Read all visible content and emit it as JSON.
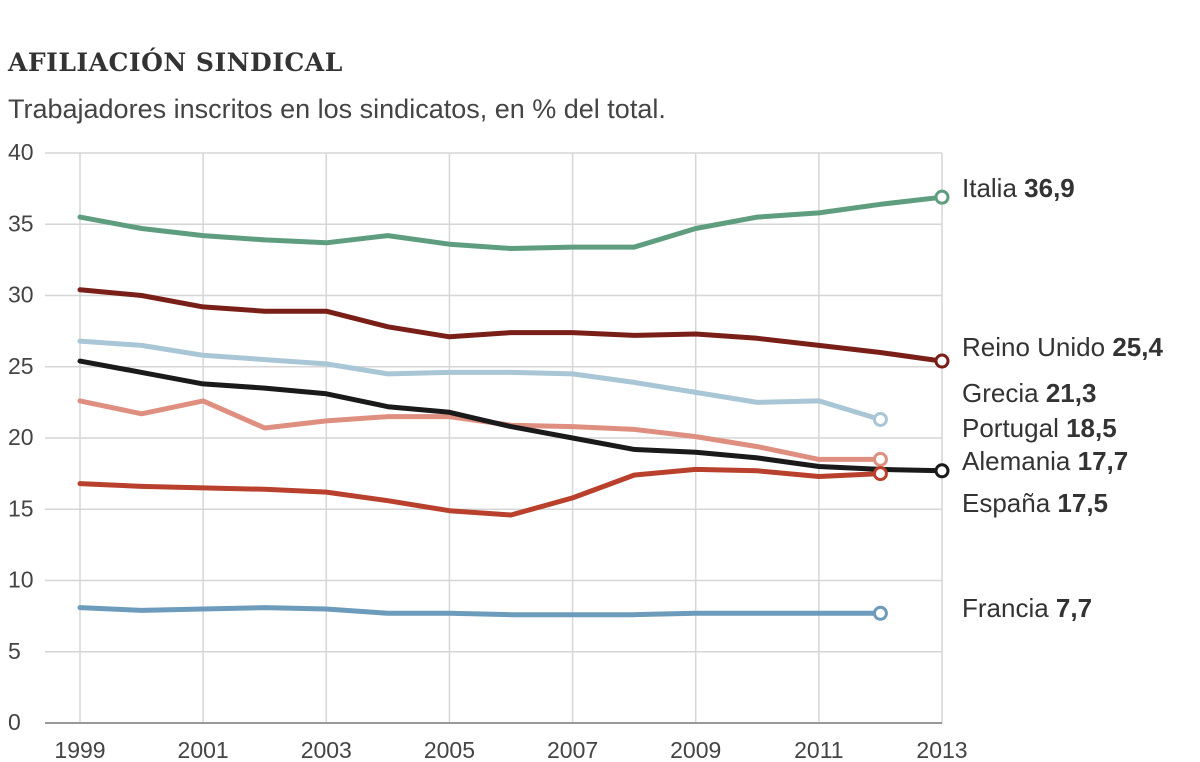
{
  "chart_data": {
    "type": "line",
    "title": "AFILIACIÓN SINDICAL",
    "subtitle": "Trabajadores inscritos en los sindicatos, en % del total.",
    "x": [
      1999,
      2000,
      2001,
      2002,
      2003,
      2004,
      2005,
      2006,
      2007,
      2008,
      2009,
      2010,
      2011,
      2012,
      2013
    ],
    "x_ticks": [
      1999,
      2001,
      2003,
      2005,
      2007,
      2009,
      2011,
      2013
    ],
    "y_ticks": [
      0,
      5,
      10,
      15,
      20,
      25,
      30,
      35,
      40
    ],
    "xlim": [
      1999,
      2013
    ],
    "ylim": [
      0,
      40
    ],
    "grid": true,
    "series": [
      {
        "name": "Italia",
        "value_label": "36,9",
        "color": "#5e9e7f",
        "values": [
          35.5,
          34.7,
          34.2,
          33.9,
          33.7,
          34.2,
          33.6,
          33.3,
          33.4,
          33.4,
          34.7,
          35.5,
          35.8,
          36.4,
          36.9
        ]
      },
      {
        "name": "Reino Unido",
        "value_label": "25,4",
        "color": "#7a1f18",
        "values": [
          30.4,
          30.0,
          29.2,
          28.9,
          28.9,
          27.8,
          27.1,
          27.4,
          27.4,
          27.2,
          27.3,
          27.0,
          26.5,
          26.0,
          25.4
        ]
      },
      {
        "name": "Grecia",
        "value_label": "21,3",
        "color": "#a9c6d6",
        "values": [
          26.8,
          26.5,
          25.8,
          25.5,
          25.2,
          24.5,
          24.6,
          24.6,
          24.5,
          23.9,
          23.2,
          22.5,
          22.6,
          21.3,
          null
        ]
      },
      {
        "name": "Portugal",
        "value_label": "18,5",
        "color": "#df8f80",
        "values": [
          22.6,
          21.7,
          22.6,
          20.7,
          21.2,
          21.5,
          21.5,
          20.9,
          20.8,
          20.6,
          20.1,
          19.4,
          18.5,
          18.5,
          null
        ]
      },
      {
        "name": "Alemania",
        "value_label": "17,7",
        "color": "#1a1a1a",
        "values": [
          25.4,
          24.6,
          23.8,
          23.5,
          23.1,
          22.2,
          21.8,
          20.8,
          20.0,
          19.2,
          19.0,
          18.6,
          18.0,
          17.8,
          17.7
        ]
      },
      {
        "name": "España",
        "value_label": "17,5",
        "color": "#b8402c",
        "values": [
          16.8,
          16.6,
          16.5,
          16.4,
          16.2,
          15.6,
          14.9,
          14.6,
          15.8,
          17.4,
          17.8,
          17.7,
          17.3,
          17.5,
          null
        ]
      },
      {
        "name": "Francia",
        "value_label": "7,7",
        "color": "#6c9bbb",
        "values": [
          8.1,
          7.9,
          8.0,
          8.1,
          8.0,
          7.7,
          7.7,
          7.6,
          7.6,
          7.6,
          7.7,
          7.7,
          7.7,
          7.7,
          null
        ]
      }
    ],
    "legend": "direct labels at right end of lines"
  }
}
